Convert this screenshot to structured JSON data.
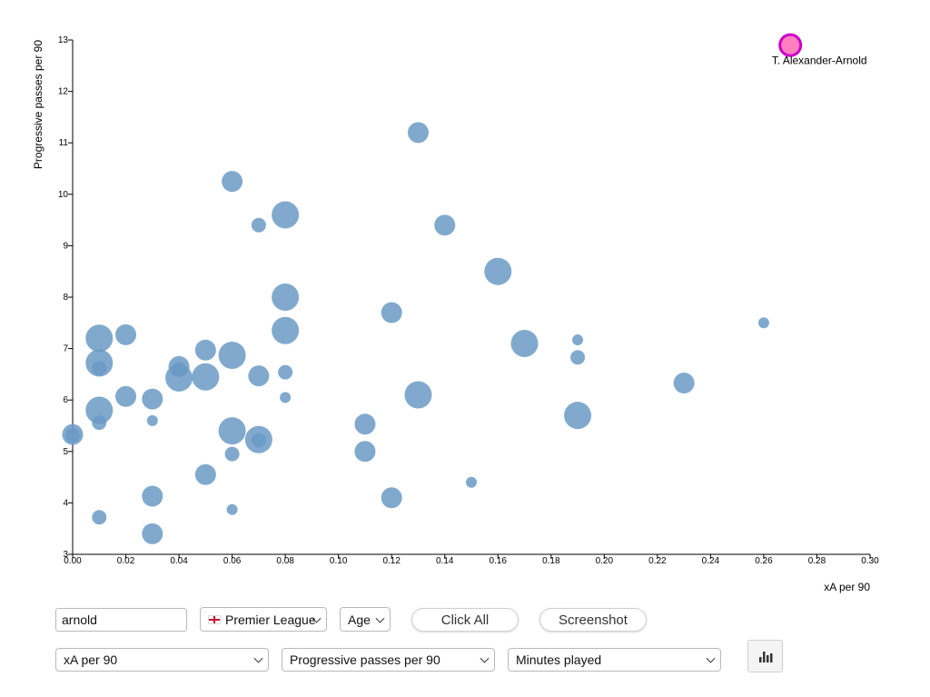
{
  "chart_data": {
    "type": "scatter",
    "xlabel": "xA per 90",
    "ylabel": "Progressive passes per 90",
    "xlim": [
      0,
      0.3
    ],
    "ylim": [
      3,
      13
    ],
    "x_ticks": [
      "0.00",
      "0.02",
      "0.04",
      "0.06",
      "0.08",
      "0.10",
      "0.12",
      "0.14",
      "0.16",
      "0.18",
      "0.20",
      "0.22",
      "0.24",
      "0.26",
      "0.28",
      "0.30"
    ],
    "y_ticks": [
      "3",
      "4",
      "5",
      "6",
      "7",
      "8",
      "9",
      "10",
      "11",
      "12",
      "13"
    ],
    "point_color": "#6a9ac4",
    "highlight_color": "#ff7fbf",
    "highlight_stroke": "#cc00cc",
    "highlight": {
      "label": "T. Alexander-Arnold",
      "x": 0.27,
      "y": 12.9,
      "size": "medium"
    },
    "points": [
      {
        "x": 0.13,
        "y": 11.2,
        "size": "medium"
      },
      {
        "x": 0.06,
        "y": 10.25,
        "size": "medium"
      },
      {
        "x": 0.08,
        "y": 9.6,
        "size": "large"
      },
      {
        "x": 0.07,
        "y": 9.4,
        "size": "small"
      },
      {
        "x": 0.14,
        "y": 9.4,
        "size": "medium"
      },
      {
        "x": 0.16,
        "y": 8.5,
        "size": "large"
      },
      {
        "x": 0.08,
        "y": 8.0,
        "size": "large"
      },
      {
        "x": 0.12,
        "y": 7.7,
        "size": "medium"
      },
      {
        "x": 0.26,
        "y": 7.5,
        "size": "xsmall"
      },
      {
        "x": 0.08,
        "y": 7.35,
        "size": "large"
      },
      {
        "x": 0.02,
        "y": 7.27,
        "size": "medium"
      },
      {
        "x": 0.01,
        "y": 7.2,
        "size": "large"
      },
      {
        "x": 0.19,
        "y": 7.17,
        "size": "xsmall"
      },
      {
        "x": 0.17,
        "y": 7.1,
        "size": "large"
      },
      {
        "x": 0.05,
        "y": 6.97,
        "size": "medium"
      },
      {
        "x": 0.06,
        "y": 6.87,
        "size": "large"
      },
      {
        "x": 0.19,
        "y": 6.83,
        "size": "small"
      },
      {
        "x": 0.01,
        "y": 6.72,
        "size": "large"
      },
      {
        "x": 0.04,
        "y": 6.65,
        "size": "medium"
      },
      {
        "x": 0.01,
        "y": 6.62,
        "size": "small"
      },
      {
        "x": 0.04,
        "y": 6.6,
        "size": "small"
      },
      {
        "x": 0.08,
        "y": 6.54,
        "size": "small"
      },
      {
        "x": 0.07,
        "y": 6.47,
        "size": "medium"
      },
      {
        "x": 0.05,
        "y": 6.45,
        "size": "large"
      },
      {
        "x": 0.04,
        "y": 6.43,
        "size": "large"
      },
      {
        "x": 0.23,
        "y": 6.33,
        "size": "medium"
      },
      {
        "x": 0.13,
        "y": 6.1,
        "size": "large"
      },
      {
        "x": 0.02,
        "y": 6.07,
        "size": "medium"
      },
      {
        "x": 0.08,
        "y": 6.05,
        "size": "xsmall"
      },
      {
        "x": 0.03,
        "y": 6.02,
        "size": "medium"
      },
      {
        "x": 0.01,
        "y": 5.8,
        "size": "large"
      },
      {
        "x": 0.19,
        "y": 5.7,
        "size": "large"
      },
      {
        "x": 0.03,
        "y": 5.6,
        "size": "xsmall"
      },
      {
        "x": 0.01,
        "y": 5.56,
        "size": "small"
      },
      {
        "x": 0.11,
        "y": 5.53,
        "size": "medium"
      },
      {
        "x": 0.06,
        "y": 5.4,
        "size": "large"
      },
      {
        "x": 0.0,
        "y": 5.33,
        "size": "medium"
      },
      {
        "x": 0.0,
        "y": 5.31,
        "size": "small"
      },
      {
        "x": 0.07,
        "y": 5.23,
        "size": "large"
      },
      {
        "x": 0.07,
        "y": 5.22,
        "size": "small"
      },
      {
        "x": 0.11,
        "y": 5.0,
        "size": "medium"
      },
      {
        "x": 0.06,
        "y": 4.95,
        "size": "small"
      },
      {
        "x": 0.05,
        "y": 4.55,
        "size": "medium"
      },
      {
        "x": 0.15,
        "y": 4.4,
        "size": "xsmall"
      },
      {
        "x": 0.03,
        "y": 4.13,
        "size": "medium"
      },
      {
        "x": 0.12,
        "y": 4.1,
        "size": "medium"
      },
      {
        "x": 0.06,
        "y": 3.87,
        "size": "xsmall"
      },
      {
        "x": 0.01,
        "y": 3.72,
        "size": "small"
      },
      {
        "x": 0.03,
        "y": 3.4,
        "size": "medium"
      }
    ]
  },
  "controls": {
    "search": {
      "value": "arnold",
      "placeholder": ""
    },
    "league": {
      "selected": "Premier League"
    },
    "size_filter": {
      "selected": "Age"
    },
    "click_all_label": "Click All",
    "screenshot_label": "Screenshot",
    "x_metric": {
      "selected": "xA per 90"
    },
    "y_metric": {
      "selected": "Progressive passes per 90"
    },
    "size_metric": {
      "selected": "Minutes played"
    },
    "chart_icon": "bar-chart-icon"
  }
}
